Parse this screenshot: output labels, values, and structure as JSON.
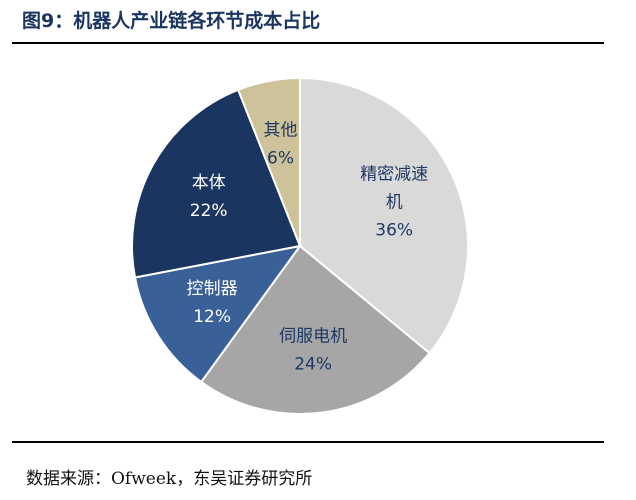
{
  "figure": {
    "title": "图9：机器人产业链各环节成本占比",
    "source": "数据来源：Ofweek，东吴证券研究所"
  },
  "chart_data": {
    "type": "pie",
    "title": "机器人产业链各环节成本占比",
    "slices": [
      {
        "label_lines": [
          "精密减速",
          "机"
        ],
        "label": "精密减速机",
        "value": 36,
        "pct": "36%",
        "color": "#d9d9d9",
        "text_color": "#1f3864"
      },
      {
        "label_lines": [
          "伺服电机"
        ],
        "label": "伺服电机",
        "value": 24,
        "pct": "24%",
        "color": "#a6a6a6",
        "text_color": "#1f3864"
      },
      {
        "label_lines": [
          "控制器"
        ],
        "label": "控制器",
        "value": 12,
        "pct": "12%",
        "color": "#3a6098",
        "text_color": "#ffffff"
      },
      {
        "label_lines": [
          "本体"
        ],
        "label": "本体",
        "value": 22,
        "pct": "22%",
        "color": "#1a3560",
        "text_color": "#ffffff"
      },
      {
        "label_lines": [
          "其他"
        ],
        "label": "其他",
        "value": 6,
        "pct": "6%",
        "color": "#cec29a",
        "text_color": "#1f3864"
      }
    ]
  }
}
